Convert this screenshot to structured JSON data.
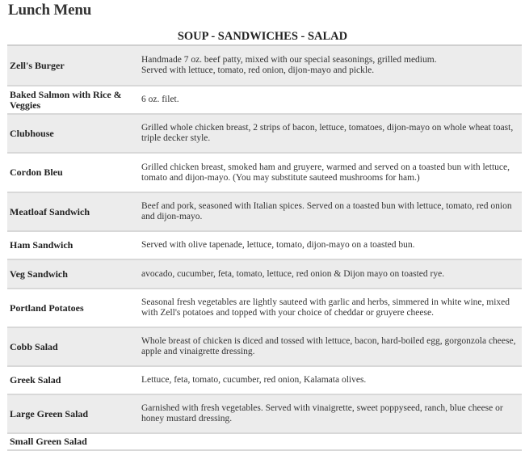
{
  "page": {
    "title": "Lunch Menu",
    "section": "SOUP - SANDWICHES - SALAD"
  },
  "items": [
    {
      "name": "Zell's Burger",
      "desc": "Handmade 7 oz. beef patty, mixed with our special seasonings, grilled medium.\nServed with lettuce, tomato, red onion, dijon-mayo and pickle."
    },
    {
      "name": "Baked Salmon with Rice & Veggies",
      "desc": "6 oz. filet."
    },
    {
      "name": "Clubhouse",
      "desc": "Grilled whole chicken breast, 2 strips of bacon, lettuce, tomatoes, dijon-mayo on whole wheat toast, triple decker style."
    },
    {
      "name": "Cordon Bleu",
      "desc": "Grilled chicken breast, smoked ham and gruyere, warmed and served on a toasted bun with lettuce, tomato and dijon-mayo. (You may substitute sauteed mushrooms for ham.)"
    },
    {
      "name": "Meatloaf Sandwich",
      "desc": "Beef and pork, seasoned with Italian spices. Served on a toasted bun with lettuce, tomato, red onion and dijon-mayo."
    },
    {
      "name": "Ham Sandwich",
      "desc": "Served with olive tapenade, lettuce, tomato, dijon-mayo on a toasted bun."
    },
    {
      "name": "Veg Sandwich",
      "desc": "avocado, cucumber, feta, tomato, lettuce, red onion & Dijon mayo on toasted rye."
    },
    {
      "name": "Portland Potatoes",
      "desc": "Seasonal fresh vegetables are lightly sauteed with garlic and herbs, simmered in white wine, mixed with Zell's potatoes and topped with your choice of cheddar or gruyere cheese."
    },
    {
      "name": "Cobb Salad",
      "desc": "Whole breast of chicken is diced and tossed with lettuce, bacon, hard-boiled egg, gorgonzola cheese, apple and vinaigrette dressing."
    },
    {
      "name": "Greek Salad",
      "desc": "Lettuce, feta, tomato, cucumber, red onion, Kalamata olives."
    },
    {
      "name": "Large Green Salad",
      "desc": "Garnished with fresh vegetables. Served with vinaigrette, sweet poppyseed, ranch, blue cheese or honey mustard dressing."
    },
    {
      "name": "Small Green Salad",
      "desc": ""
    }
  ]
}
